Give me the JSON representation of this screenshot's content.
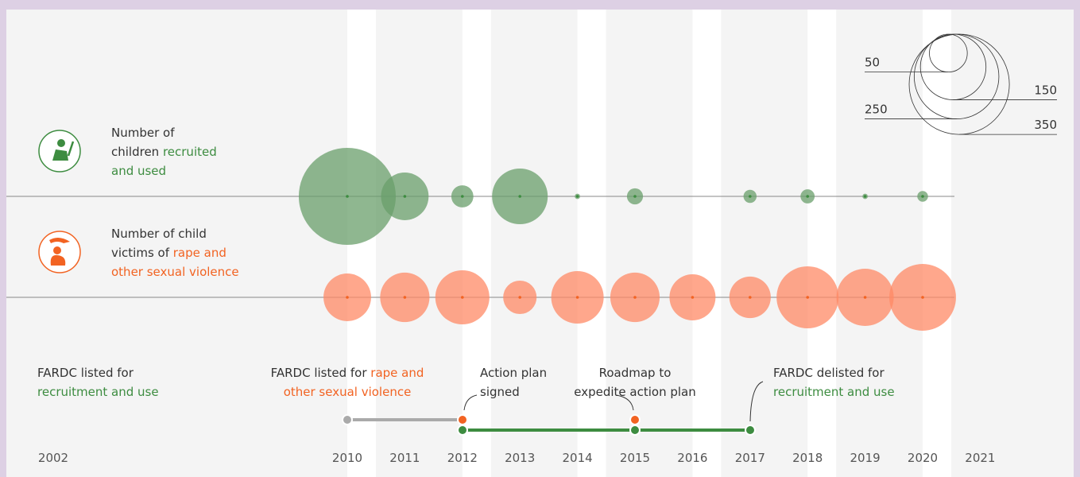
{
  "chart_data": {
    "type": "bubble",
    "categories": [
      "2010",
      "2011",
      "2012",
      "2013",
      "2014",
      "2015",
      "2016",
      "2017",
      "2018",
      "2019",
      "2020",
      "2021"
    ],
    "start_label": "2002",
    "size_legend": [
      50,
      150,
      250,
      350
    ],
    "series": [
      {
        "label": [
          [
            {
              "t": "Number of"
            }
          ],
          [
            {
              "t": "children "
            },
            {
              "t": "recruited",
              "hl": true
            }
          ],
          [
            {
              "t": "and used",
              "hl": true
            }
          ]
        ],
        "color": "#6a9f6b",
        "highlight": "#3d8c40",
        "values": [
          328,
          79,
          17,
          108,
          1,
          9,
          null,
          6,
          7,
          1,
          4,
          null
        ]
      },
      {
        "label": [
          [
            {
              "t": "Number of child"
            }
          ],
          [
            {
              "t": "victims of "
            },
            {
              "t": "rape and",
              "hl": true
            }
          ],
          [
            {
              "t": "other sexual violence",
              "hl": true
            }
          ]
        ],
        "color": "#ff8a65",
        "highlight": "#f26322",
        "values": [
          79,
          85,
          102,
          39,
          96,
          85,
          74,
          60,
          134,
          114,
          155,
          null
        ]
      }
    ],
    "events": [
      [
        [
          {
            "t": "FARDC listed for"
          }
        ],
        [
          {
            "t": "recruitment and use",
            "c": "green"
          }
        ]
      ],
      [
        [
          {
            "t": "FARDC listed for "
          },
          {
            "t": "rape and",
            "c": "orange"
          }
        ],
        [
          {
            "t": "other sexual violence",
            "c": "orange"
          }
        ]
      ],
      [
        [
          {
            "t": "Action plan"
          }
        ],
        [
          {
            "t": "signed"
          }
        ]
      ],
      [
        [
          {
            "t": "Roadmap to"
          }
        ],
        [
          {
            "t": "expedite action plan"
          }
        ]
      ],
      [
        [
          {
            "t": "FARDC delisted for"
          }
        ],
        [
          {
            "t": "recruitment and use",
            "c": "green"
          }
        ]
      ]
    ]
  }
}
